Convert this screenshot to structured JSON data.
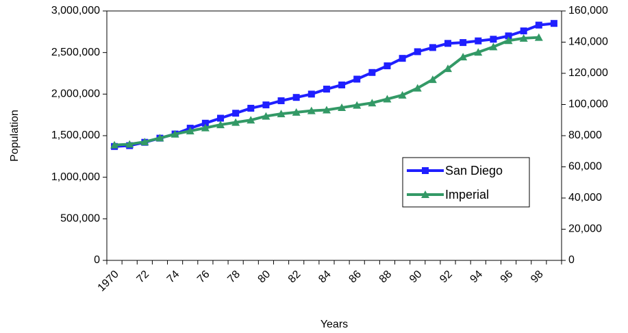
{
  "chart_data": {
    "type": "line",
    "x_label": "Years",
    "y_label": "Population",
    "categories": [
      "1970",
      null,
      "72",
      null,
      "74",
      null,
      "76",
      null,
      "78",
      null,
      "80",
      null,
      "82",
      null,
      "84",
      null,
      "86",
      null,
      "88",
      null,
      "90",
      null,
      "92",
      null,
      "94",
      null,
      "96",
      null,
      "98",
      null
    ],
    "series": [
      {
        "name": "San Diego",
        "color": "#1f1fff",
        "marker": "square",
        "values": [
          1370000,
          1380000,
          1420000,
          1470000,
          1520000,
          1590000,
          1650000,
          1710000,
          1770000,
          1830000,
          1870000,
          1920000,
          1960000,
          2000000,
          2060000,
          2110000,
          2180000,
          2260000,
          2340000,
          2430000,
          2510000,
          2560000,
          2610000,
          2620000,
          2640000,
          2660000,
          2700000,
          2760000,
          2830000,
          2850000
        ]
      },
      {
        "name": "Imperial",
        "color": "#339966",
        "marker": "triangle",
        "axis": "y2",
        "values": [
          74000,
          74500,
          76000,
          78500,
          81000,
          83000,
          85000,
          87000,
          88500,
          90000,
          92500,
          94000,
          95000,
          96000,
          96500,
          98000,
          99500,
          101000,
          103500,
          106000,
          110500,
          116000,
          123000,
          130500,
          133500,
          137000,
          141000,
          142500,
          143000,
          null
        ]
      }
    ],
    "ylim": [
      0,
      3000000
    ],
    "yticks": [
      0,
      {
        "value": 500000,
        "label": "500,000"
      },
      {
        "value": 1000000,
        "label": "1,000,000"
      },
      {
        "value": 1500000,
        "label": "1,500,000"
      },
      {
        "value": 2000000,
        "label": "2,000,000"
      },
      {
        "value": 2500000,
        "label": "2,500,000"
      },
      {
        "value": 3000000,
        "label": "3,000,000"
      }
    ],
    "y2lim": [
      0,
      160000
    ],
    "y2ticks": [
      0,
      {
        "value": 20000,
        "label": "20,000"
      },
      {
        "value": 40000,
        "label": "40,000"
      },
      {
        "value": 60000,
        "label": "60,000"
      },
      {
        "value": 80000,
        "label": "80,000"
      },
      {
        "value": 100000,
        "label": "100,000"
      },
      {
        "value": 120000,
        "label": "120,000"
      },
      {
        "value": 140000,
        "label": "140,000"
      },
      {
        "value": 160000,
        "label": "160,000"
      }
    ],
    "legend_position": "center-right"
  }
}
